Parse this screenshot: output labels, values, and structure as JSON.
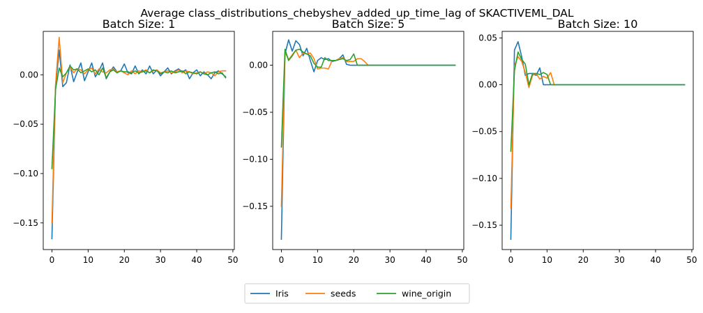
{
  "figure": {
    "suptitle": "Average class_distributions_chebyshev_added_up_time_lag of SKACTIVEML_DAL",
    "legend": {
      "placement": "bottom-center",
      "entries": [
        {
          "label": "Iris",
          "color": "#1f77b4"
        },
        {
          "label": "seeds",
          "color": "#ff7f0e"
        },
        {
          "label": "wine_origin",
          "color": "#2ca02c"
        }
      ]
    }
  },
  "chart_data": [
    {
      "type": "line",
      "title": "Batch Size: 1",
      "xlim": [
        -2.4,
        50.4
      ],
      "ylim": [
        -0.177,
        0.044
      ],
      "xticks": [
        0,
        10,
        20,
        30,
        40,
        50
      ],
      "yticks": [
        -0.15,
        -0.1,
        -0.05,
        0.0
      ],
      "ytick_labels": [
        "−0.15",
        "−0.10",
        "−0.05",
        "0.00"
      ],
      "grid": false,
      "series": [
        {
          "name": "Iris",
          "color": "#1f77b4",
          "x": [
            0,
            1,
            2,
            3,
            4,
            5,
            6,
            7,
            8,
            9,
            10,
            11,
            12,
            13,
            14,
            15,
            16,
            17,
            18,
            19,
            20,
            21,
            22,
            23,
            24,
            25,
            26,
            27,
            28,
            29,
            30,
            31,
            32,
            33,
            34,
            35,
            36,
            37,
            38,
            39,
            40,
            41,
            42,
            43,
            44,
            45,
            46,
            47,
            48
          ],
          "y": [
            -0.166,
            -0.012,
            0.025,
            -0.012,
            -0.008,
            0.01,
            -0.007,
            0.003,
            0.012,
            -0.006,
            0.003,
            0.012,
            -0.002,
            0.004,
            0.012,
            -0.004,
            0.003,
            0.008,
            0.003,
            0.004,
            0.011,
            0.002,
            0.001,
            0.009,
            0.001,
            0.005,
            0.001,
            0.009,
            0.001,
            0.005,
            -0.001,
            0.003,
            0.007,
            0.001,
            0.004,
            0.006,
            0.003,
            0.005,
            -0.004,
            0.002,
            0.005,
            -0.001,
            0.003,
            0.0,
            -0.004,
            0.002,
            0.004,
            0.001,
            -0.002
          ]
        },
        {
          "name": "seeds",
          "color": "#ff7f0e",
          "x": [
            0,
            1,
            2,
            3,
            4,
            5,
            6,
            7,
            8,
            9,
            10,
            11,
            12,
            13,
            14,
            15,
            16,
            17,
            18,
            19,
            20,
            21,
            22,
            23,
            24,
            25,
            26,
            27,
            28,
            29,
            30,
            31,
            32,
            33,
            34,
            35,
            36,
            37,
            38,
            39,
            40,
            41,
            42,
            43,
            44,
            45,
            46,
            47,
            48
          ],
          "y": [
            -0.15,
            -0.01,
            0.038,
            -0.008,
            0.002,
            0.008,
            0.002,
            0.006,
            0.005,
            0.001,
            0.005,
            0.007,
            0.001,
            0.006,
            0.003,
            0.002,
            0.005,
            0.006,
            0.003,
            0.004,
            0.002,
            0.0,
            0.004,
            0.001,
            0.004,
            0.003,
            0.005,
            0.002,
            0.004,
            0.005,
            0.002,
            0.003,
            0.004,
            0.002,
            0.003,
            0.005,
            0.002,
            0.004,
            0.003,
            0.001,
            0.002,
            0.003,
            0.001,
            0.003,
            0.002,
            -0.001,
            0.003,
            0.004,
            0.004
          ]
        },
        {
          "name": "wine_origin",
          "color": "#2ca02c",
          "x": [
            0,
            1,
            2,
            3,
            4,
            5,
            6,
            7,
            8,
            9,
            10,
            11,
            12,
            13,
            14,
            15,
            16,
            17,
            18,
            19,
            20,
            21,
            22,
            23,
            24,
            25,
            26,
            27,
            28,
            29,
            30,
            31,
            32,
            33,
            34,
            35,
            36,
            37,
            38,
            39,
            40,
            41,
            42,
            43,
            44,
            45,
            46,
            47,
            48
          ],
          "y": [
            -0.095,
            -0.015,
            0.007,
            -0.002,
            0.002,
            0.009,
            0.005,
            0.006,
            0.002,
            0.004,
            0.006,
            0.003,
            0.005,
            0.0,
            0.007,
            -0.003,
            0.003,
            0.005,
            0.002,
            0.004,
            0.003,
            0.003,
            0.002,
            0.004,
            0.002,
            0.003,
            0.004,
            0.002,
            0.005,
            0.004,
            0.001,
            0.003,
            0.002,
            0.004,
            0.002,
            0.003,
            0.004,
            0.001,
            0.003,
            0.002,
            0.001,
            0.003,
            0.001,
            0.0,
            0.002,
            0.003,
            0.001,
            0.002,
            -0.003
          ]
        }
      ]
    },
    {
      "type": "line",
      "title": "Batch Size: 5",
      "xlim": [
        -2.4,
        50.4
      ],
      "ylim": [
        -0.196,
        0.036
      ],
      "xticks": [
        0,
        10,
        20,
        30,
        40,
        50
      ],
      "yticks": [
        -0.15,
        -0.1,
        -0.05,
        0.0
      ],
      "ytick_labels": [
        "−0.15",
        "−0.10",
        "−0.05",
        "0.00"
      ],
      "grid": false,
      "series": [
        {
          "name": "Iris",
          "color": "#1f77b4",
          "x": [
            0,
            1,
            2,
            3,
            4,
            5,
            6,
            7,
            8,
            9,
            10,
            11,
            12,
            13,
            14,
            15,
            16,
            17,
            18,
            19,
            20,
            21,
            22,
            23,
            24,
            25,
            26,
            27,
            28,
            29,
            30,
            31,
            32,
            33,
            34,
            35,
            36,
            37,
            38,
            39,
            40,
            41,
            42,
            43,
            44,
            45,
            46,
            47,
            48
          ],
          "y": [
            -0.185,
            0.012,
            0.027,
            0.015,
            0.026,
            0.022,
            0.01,
            0.018,
            0.005,
            -0.007,
            0.005,
            0.008,
            0.006,
            0.007,
            0.004,
            0.005,
            0.007,
            0.011,
            0.001,
            0.0,
            0.0,
            0.0,
            0.0,
            0.0,
            0.0,
            0.0,
            0.0,
            0.0,
            0.0,
            0.0,
            0.0,
            0.0,
            0.0,
            0.0,
            0.0,
            0.0,
            0.0,
            0.0,
            0.0,
            0.0,
            0.0,
            0.0,
            0.0,
            0.0,
            0.0,
            0.0,
            0.0,
            0.0,
            0.0
          ]
        },
        {
          "name": "seeds",
          "color": "#ff7f0e",
          "x": [
            0,
            1,
            2,
            3,
            4,
            5,
            6,
            7,
            8,
            9,
            10,
            11,
            12,
            13,
            14,
            15,
            16,
            17,
            18,
            19,
            20,
            21,
            22,
            23,
            24
          ],
          "y": [
            -0.15,
            0.014,
            0.006,
            0.011,
            0.016,
            0.008,
            0.013,
            0.012,
            0.013,
            0.007,
            -0.004,
            -0.003,
            -0.003,
            -0.004,
            0.005,
            0.005,
            0.007,
            0.008,
            0.004,
            0.004,
            0.004,
            0.007,
            0.007,
            0.004,
            0.0
          ]
        },
        {
          "name": "wine_origin",
          "color": "#2ca02c",
          "x": [
            0,
            1,
            2,
            3,
            4,
            5,
            6,
            7,
            8,
            9,
            10,
            11,
            12,
            13,
            14,
            15,
            16,
            17,
            18,
            19,
            20,
            21,
            22,
            23,
            24,
            25,
            26,
            27,
            28,
            29,
            30,
            31,
            32,
            33,
            34,
            35,
            36,
            37,
            38,
            39,
            40,
            41,
            42,
            43,
            44,
            45,
            46,
            47,
            48
          ],
          "y": [
            -0.087,
            0.017,
            0.005,
            0.01,
            0.016,
            0.017,
            0.014,
            0.012,
            0.01,
            0.002,
            -0.002,
            -0.002,
            0.008,
            0.005,
            0.005,
            0.005,
            0.006,
            0.007,
            0.005,
            0.006,
            0.012,
            0.0,
            0.0,
            0.0,
            0.0,
            0.0,
            0.0,
            0.0,
            0.0,
            0.0,
            0.0,
            0.0,
            0.0,
            0.0,
            0.0,
            0.0,
            0.0,
            0.0,
            0.0,
            0.0,
            0.0,
            0.0,
            0.0,
            0.0,
            0.0,
            0.0,
            0.0,
            0.0,
            0.0
          ]
        }
      ]
    },
    {
      "type": "line",
      "title": "Batch Size: 10",
      "xlim": [
        -2.4,
        50.4
      ],
      "ylim": [
        -0.176,
        0.057
      ],
      "xticks": [
        0,
        10,
        20,
        30,
        40,
        50
      ],
      "yticks": [
        -0.15,
        -0.1,
        -0.05,
        0.0,
        0.05
      ],
      "ytick_labels": [
        "−0.15",
        "−0.10",
        "−0.05",
        "0.00",
        "0.05"
      ],
      "grid": false,
      "series": [
        {
          "name": "Iris",
          "color": "#1f77b4",
          "x": [
            0,
            1,
            2,
            3,
            4,
            5,
            6,
            7,
            8,
            9,
            10,
            11,
            12,
            13,
            14,
            15,
            16,
            17,
            18,
            19,
            20,
            21,
            22,
            23,
            24,
            25,
            26,
            27,
            28,
            29,
            30,
            31,
            32,
            33,
            34,
            35,
            36,
            37,
            38,
            39,
            40,
            41,
            42,
            43,
            44,
            45,
            46,
            47,
            48
          ],
          "y": [
            -0.165,
            0.037,
            0.046,
            0.03,
            0.01,
            0.012,
            0.012,
            0.01,
            0.018,
            0.0,
            0.0,
            0.0,
            0.0,
            0.0,
            0.0,
            0.0,
            0.0,
            0.0,
            0.0,
            0.0,
            0.0,
            0.0,
            0.0,
            0.0,
            0.0,
            0.0,
            0.0,
            0.0,
            0.0,
            0.0,
            0.0,
            0.0,
            0.0,
            0.0,
            0.0,
            0.0,
            0.0,
            0.0,
            0.0,
            0.0,
            0.0,
            0.0,
            0.0,
            0.0,
            0.0,
            0.0,
            0.0,
            0.0,
            0.0
          ]
        },
        {
          "name": "seeds",
          "color": "#ff7f0e",
          "x": [
            0,
            1,
            2,
            3,
            4,
            5,
            6,
            7,
            8,
            9,
            10,
            11,
            12
          ],
          "y": [
            -0.132,
            0.02,
            0.03,
            0.025,
            0.013,
            -0.003,
            0.01,
            0.012,
            0.006,
            0.009,
            0.007,
            0.013,
            0.0
          ]
        },
        {
          "name": "wine_origin",
          "color": "#2ca02c",
          "x": [
            0,
            1,
            2,
            3,
            4,
            5,
            6,
            7,
            8,
            9,
            10,
            11,
            12,
            13,
            14,
            15,
            16,
            17,
            18,
            19,
            20,
            21,
            22,
            23,
            24,
            25,
            26,
            27,
            28,
            29,
            30,
            31,
            32,
            33,
            34,
            35,
            36,
            37,
            38,
            39,
            40,
            41,
            42,
            43,
            44,
            45,
            46,
            47,
            48
          ],
          "y": [
            -0.071,
            0.015,
            0.035,
            0.027,
            0.022,
            0.0,
            0.012,
            0.012,
            0.011,
            0.013,
            0.011,
            0.0,
            0.0,
            0.0,
            0.0,
            0.0,
            0.0,
            0.0,
            0.0,
            0.0,
            0.0,
            0.0,
            0.0,
            0.0,
            0.0,
            0.0,
            0.0,
            0.0,
            0.0,
            0.0,
            0.0,
            0.0,
            0.0,
            0.0,
            0.0,
            0.0,
            0.0,
            0.0,
            0.0,
            0.0,
            0.0,
            0.0,
            0.0,
            0.0,
            0.0,
            0.0,
            0.0,
            0.0,
            0.0
          ]
        }
      ]
    }
  ]
}
